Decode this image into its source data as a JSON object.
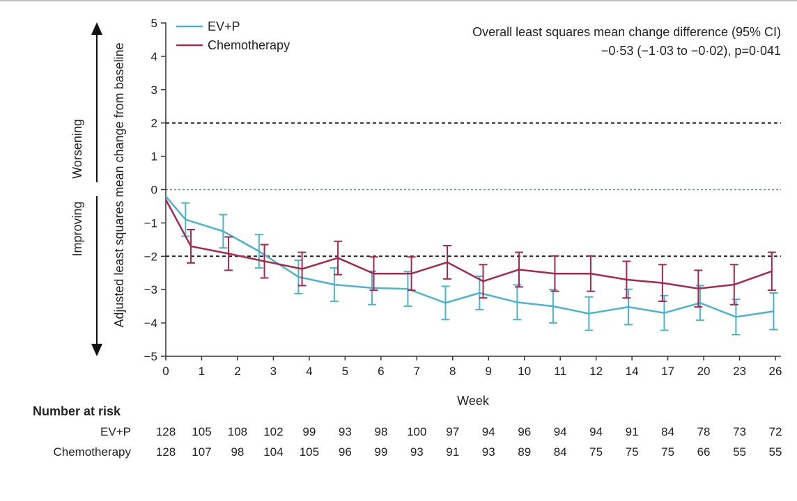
{
  "colors": {
    "ev": "#4ab3cf",
    "chemo": "#a8274d",
    "axis": "#333333",
    "ref": "#222222",
    "zero": "#5a8fa3"
  },
  "chart_data": {
    "type": "line",
    "xlabel": "Week",
    "ylabel": "Adjusted least squares mean change from baseline",
    "ylim": [
      -5,
      5
    ],
    "yticks": [
      5,
      4,
      3,
      2,
      1,
      0,
      -1,
      -2,
      -3,
      -4,
      -5
    ],
    "ytick_labels": [
      "5",
      "4",
      "3",
      "2",
      "1",
      "0",
      "−1",
      "−2",
      "−3",
      "−4",
      "−5"
    ],
    "categories": [
      "0",
      "1",
      "2",
      "3",
      "4",
      "5",
      "6",
      "7",
      "8",
      "9",
      "10",
      "11",
      "12",
      "14",
      "17",
      "20",
      "23",
      "26"
    ],
    "reference_lines": [
      2,
      -2
    ],
    "zero_line": 0,
    "direction_labels": {
      "up": "Worsening",
      "down": "Improving"
    },
    "legend": [
      "EV+P",
      "Chemotherapy"
    ],
    "annotation": {
      "line1": "Overall least squares mean change difference (95% CI)",
      "line2": "−0·53 (−1·03 to −0·02), p=0·041"
    },
    "series": [
      {
        "name": "EV+P",
        "color_key": "ev",
        "x": [
          0,
          0.55,
          1.6,
          2.6,
          3.7,
          4.7,
          5.75,
          6.75,
          7.8,
          8.75,
          9.8,
          10.8,
          11.8,
          12.9,
          13.9,
          14.9,
          15.9,
          16.95
        ],
        "values": [
          -0.2,
          -0.9,
          -1.25,
          -1.85,
          -2.62,
          -2.85,
          -2.95,
          -2.98,
          -3.4,
          -3.1,
          -3.38,
          -3.5,
          -3.72,
          -3.52,
          -3.7,
          -3.4,
          -3.82,
          -3.65
        ],
        "lower": [
          null,
          -1.4,
          -1.75,
          -2.35,
          -3.12,
          -3.35,
          -3.45,
          -3.5,
          -3.9,
          -3.6,
          -3.9,
          -4.0,
          -4.22,
          -4.05,
          -4.22,
          -3.92,
          -4.35,
          -4.2
        ],
        "upper": [
          null,
          -0.4,
          -0.75,
          -1.35,
          -2.12,
          -2.35,
          -2.45,
          -2.46,
          -2.9,
          -2.6,
          -2.86,
          -3.0,
          -3.22,
          -2.99,
          -3.18,
          -2.88,
          -3.29,
          -3.1
        ]
      },
      {
        "name": "Chemotherapy",
        "color_key": "chemo",
        "x": [
          0,
          0.7,
          1.75,
          2.75,
          3.8,
          4.8,
          5.8,
          6.85,
          7.85,
          8.85,
          9.85,
          10.85,
          11.85,
          12.85,
          13.85,
          14.85,
          15.85,
          16.9
        ],
        "values": [
          -0.3,
          -1.7,
          -1.92,
          -2.15,
          -2.38,
          -2.05,
          -2.52,
          -2.52,
          -2.18,
          -2.75,
          -2.4,
          -2.52,
          -2.52,
          -2.7,
          -2.8,
          -2.97,
          -2.85,
          -2.45
        ],
        "lower": [
          null,
          -2.2,
          -2.42,
          -2.65,
          -2.88,
          -2.55,
          -3.02,
          -3.02,
          -2.68,
          -3.25,
          -2.92,
          -3.05,
          -3.05,
          -3.25,
          -3.35,
          -3.52,
          -3.45,
          -3.02
        ],
        "upper": [
          null,
          -1.2,
          -1.42,
          -1.65,
          -1.88,
          -1.55,
          -2.02,
          -2.02,
          -1.68,
          -2.25,
          -1.88,
          -1.99,
          -1.99,
          -2.15,
          -2.25,
          -2.42,
          -2.25,
          -1.88
        ]
      }
    ]
  },
  "risk_table": {
    "title": "Number at risk",
    "rows": [
      {
        "label": "EV+P",
        "values": [
          "128",
          "105",
          "108",
          "102",
          "99",
          "93",
          "98",
          "100",
          "97",
          "94",
          "96",
          "94",
          "94",
          "91",
          "84",
          "78",
          "73",
          "72"
        ]
      },
      {
        "label": "Chemotherapy",
        "values": [
          "128",
          "107",
          "98",
          "104",
          "105",
          "96",
          "99",
          "93",
          "91",
          "93",
          "89",
          "84",
          "75",
          "75",
          "75",
          "66",
          "55",
          "55"
        ]
      }
    ]
  }
}
